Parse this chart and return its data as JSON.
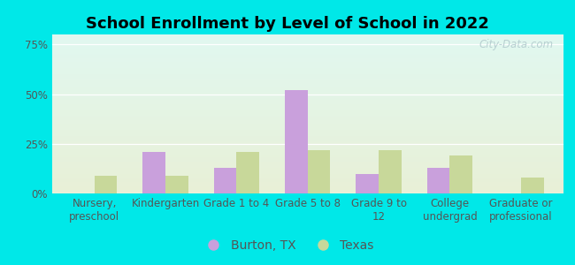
{
  "title": "School Enrollment by Level of School in 2022",
  "categories": [
    "Nursery,\npreschool",
    "Kindergarten",
    "Grade 1 to 4",
    "Grade 5 to 8",
    "Grade 9 to\n12",
    "College\nundergrad",
    "Graduate or\nprofessional"
  ],
  "burton_values": [
    0,
    21,
    13,
    52,
    10,
    13,
    0
  ],
  "texas_values": [
    9,
    9,
    21,
    22,
    22,
    19,
    8
  ],
  "burton_color": "#c9a0dc",
  "texas_color": "#c8d89a",
  "bar_width": 0.32,
  "ylim": [
    0,
    80
  ],
  "yticks": [
    0,
    25,
    50,
    75
  ],
  "ytick_labels": [
    "0%",
    "25%",
    "50%",
    "75%"
  ],
  "legend_labels": [
    "Burton, TX",
    "Texas"
  ],
  "bg_outer": "#00e8e8",
  "bg_inner_topleft": [
    0.88,
    0.97,
    0.94
  ],
  "bg_inner_bottomright": [
    0.91,
    0.94,
    0.84
  ],
  "watermark": "City-Data.com",
  "title_fontsize": 13,
  "axis_fontsize": 8.5,
  "legend_fontsize": 10,
  "tick_color": "#555555",
  "grid_color": "#ffffff"
}
